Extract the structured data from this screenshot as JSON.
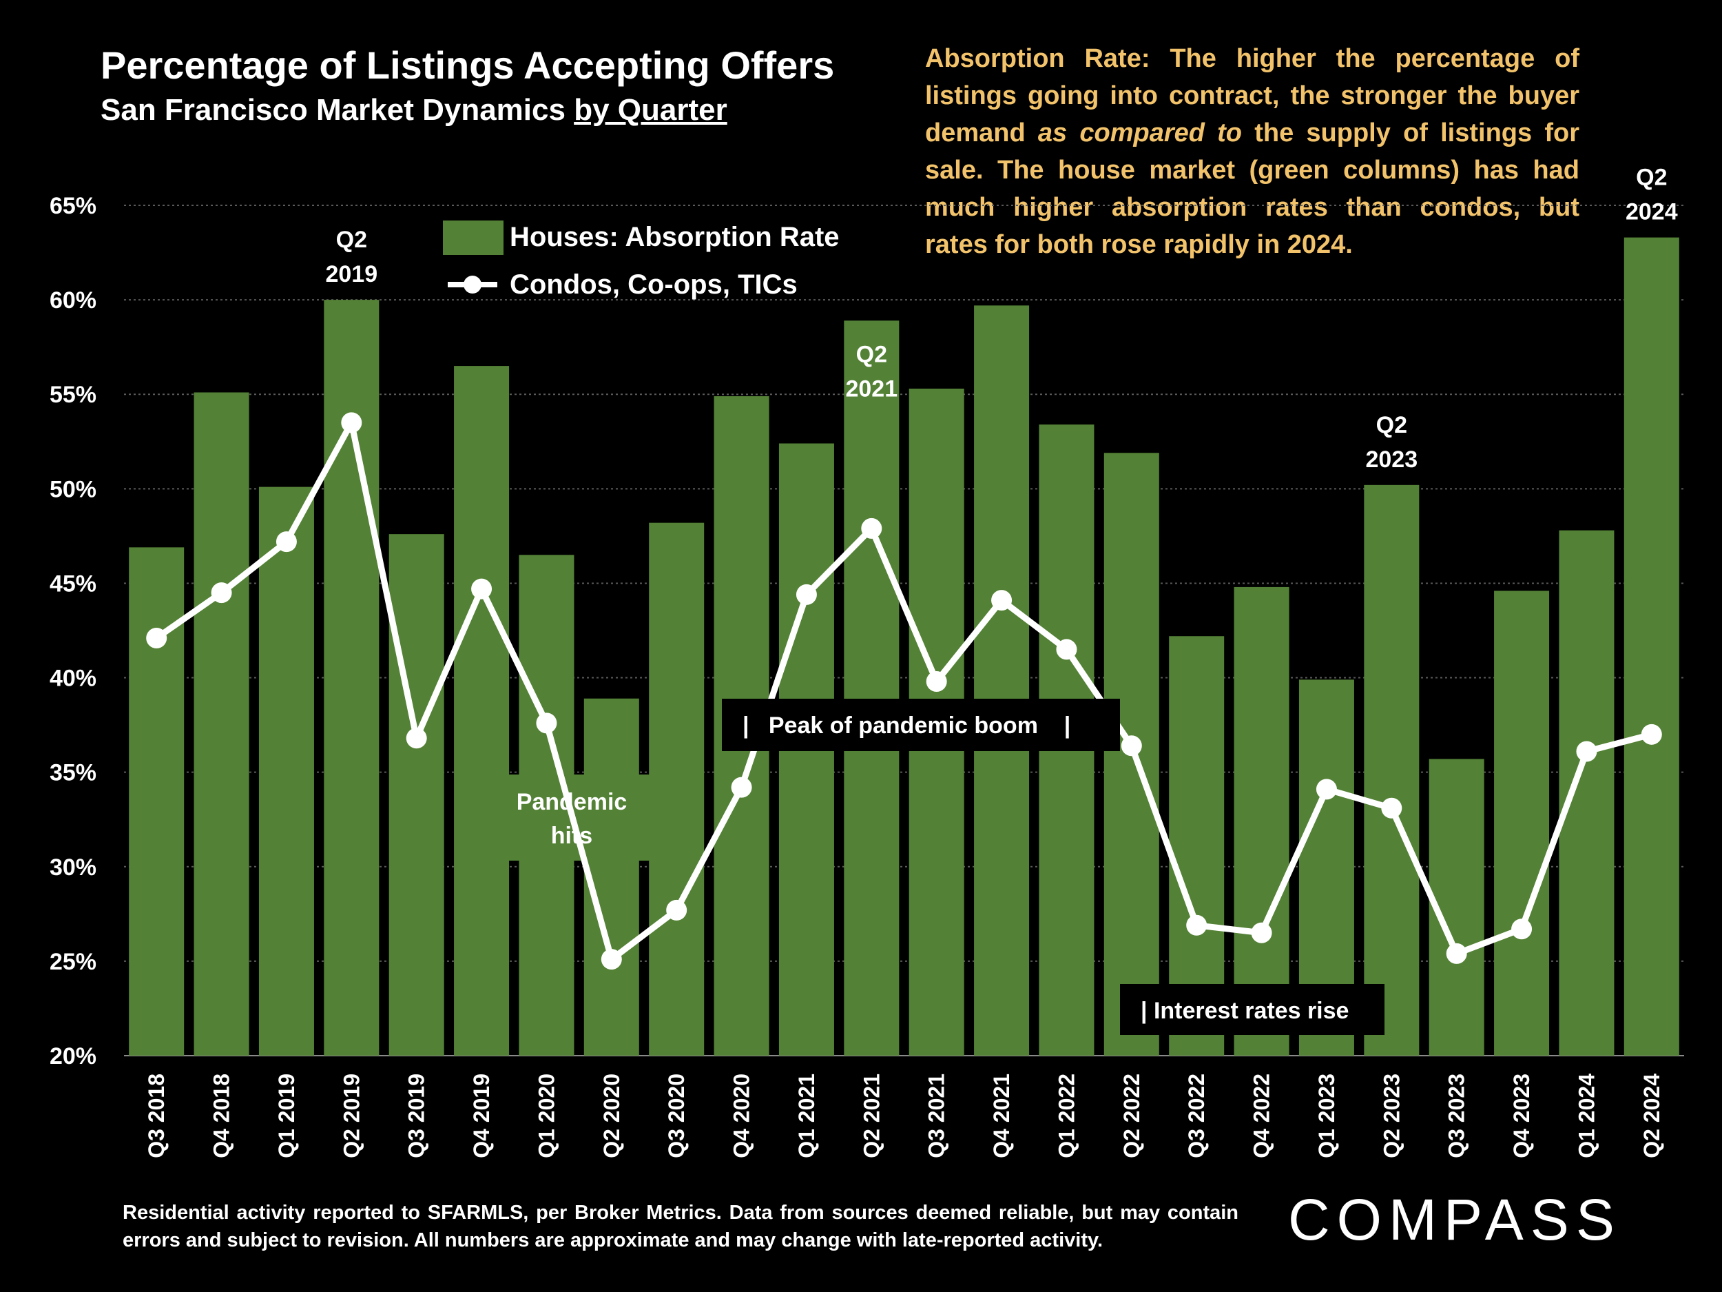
{
  "title": "Percentage of Listings Accepting Offers",
  "subtitle_main": "San Francisco Market Dynamics ",
  "subtitle_underlined": "by Quarter",
  "note": {
    "part1": "Absorption Rate: The higher the percentage of listings going into contract, the stronger the buyer demand ",
    "italic": "as compared to",
    "part2": " the supply of listings for sale.  The house market (green columns) has had much higher absorption rates than condos, but rates for both rose rapidly in 2024."
  },
  "footer": "Residential activity reported to SFARMLS, per Broker Metrics. Data from sources deemed reliable, but may contain errors and subject to revision. All numbers are approximate and may change with late-reported activity.",
  "logo": "COMPASS",
  "colors": {
    "bar": "#538135",
    "line": "#ffffff",
    "note": "#f2c36b",
    "background": "#000000"
  },
  "chart_data": {
    "type": "bar",
    "categories": [
      "Q3 2018",
      "Q4 2018",
      "Q1 2019",
      "Q2 2019",
      "Q3 2019",
      "Q4 2019",
      "Q1 2020",
      "Q2 2020",
      "Q3 2020",
      "Q4 2020",
      "Q1 2021",
      "Q2 2021",
      "Q3 2021",
      "Q4 2021",
      "Q1 2022",
      "Q2 2022",
      "Q3 2022",
      "Q4 2022",
      "Q1 2023",
      "Q2 2023",
      "Q3 2023",
      "Q4 2023",
      "Q1 2024",
      "Q2 2024"
    ],
    "series": [
      {
        "name": "Houses: Absorption Rate",
        "type": "bar",
        "values": [
          46.9,
          55.1,
          50.1,
          60.0,
          47.6,
          56.5,
          46.5,
          38.9,
          48.2,
          54.9,
          52.4,
          58.9,
          55.3,
          59.7,
          53.4,
          51.9,
          42.2,
          44.8,
          39.9,
          50.2,
          35.7,
          44.6,
          47.8,
          63.3
        ]
      },
      {
        "name": "Condos, Co-ops, TICs",
        "type": "line",
        "values": [
          42.1,
          44.5,
          47.2,
          53.5,
          36.8,
          44.7,
          37.6,
          25.1,
          27.7,
          34.2,
          44.4,
          47.9,
          39.8,
          44.1,
          41.5,
          36.4,
          26.9,
          26.5,
          34.1,
          33.1,
          25.4,
          26.7,
          36.1,
          37.0
        ]
      }
    ],
    "ylim": [
      20,
      65
    ],
    "yticks": [
      "20%",
      "25%",
      "30%",
      "35%",
      "40%",
      "45%",
      "50%",
      "55%",
      "60%",
      "65%"
    ],
    "grid": true,
    "legend": "top-left",
    "annotations": [
      {
        "index": 3,
        "line1": "Q2",
        "line2": "2019"
      },
      {
        "index": 11,
        "line1": "Q2",
        "line2": "2021"
      },
      {
        "index": 19,
        "line1": "Q2",
        "line2": "2023"
      },
      {
        "index": 23,
        "line1": "Q2",
        "line2": "2024"
      }
    ],
    "callouts": {
      "pandemic_line1": "Pandemic",
      "pandemic_line2": "hits",
      "peak": "|   Peak of pandemic boom    |",
      "rates": "| Interest rates rise"
    }
  }
}
